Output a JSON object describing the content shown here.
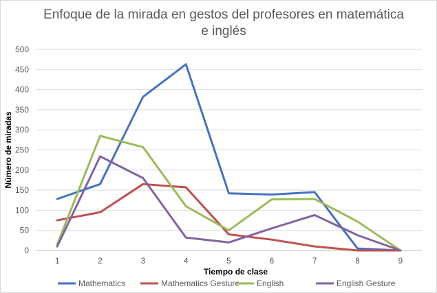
{
  "chart_data": {
    "type": "line",
    "title": "Enfoque de la mirada en gestos del profesores en matemática e inglés",
    "xlabel": "Tiempo de clase",
    "ylabel": "Número de miradas",
    "categories": [
      "1",
      "2",
      "3",
      "4",
      "5",
      "6",
      "7",
      "8",
      "9"
    ],
    "ylim": [
      0,
      500
    ],
    "yticks": [
      "0",
      "50",
      "100",
      "150",
      "200",
      "250",
      "300",
      "350",
      "400",
      "450",
      "500"
    ],
    "grid": true,
    "legend_position": "bottom",
    "series": [
      {
        "name": "Mathematics",
        "color": "#4472c4",
        "values": [
          128,
          165,
          382,
          463,
          142,
          139,
          145,
          5,
          0
        ]
      },
      {
        "name": "Mathematics Gesture",
        "color": "#c0504d",
        "values": [
          75,
          95,
          165,
          157,
          40,
          27,
          10,
          0,
          0
        ]
      },
      {
        "name": "English",
        "color": "#9bbb59",
        "values": [
          15,
          285,
          257,
          110,
          50,
          127,
          128,
          72,
          0
        ]
      },
      {
        "name": "English Gesture",
        "color": "#8064a2",
        "values": [
          10,
          234,
          180,
          32,
          20,
          55,
          88,
          38,
          0
        ]
      }
    ]
  }
}
